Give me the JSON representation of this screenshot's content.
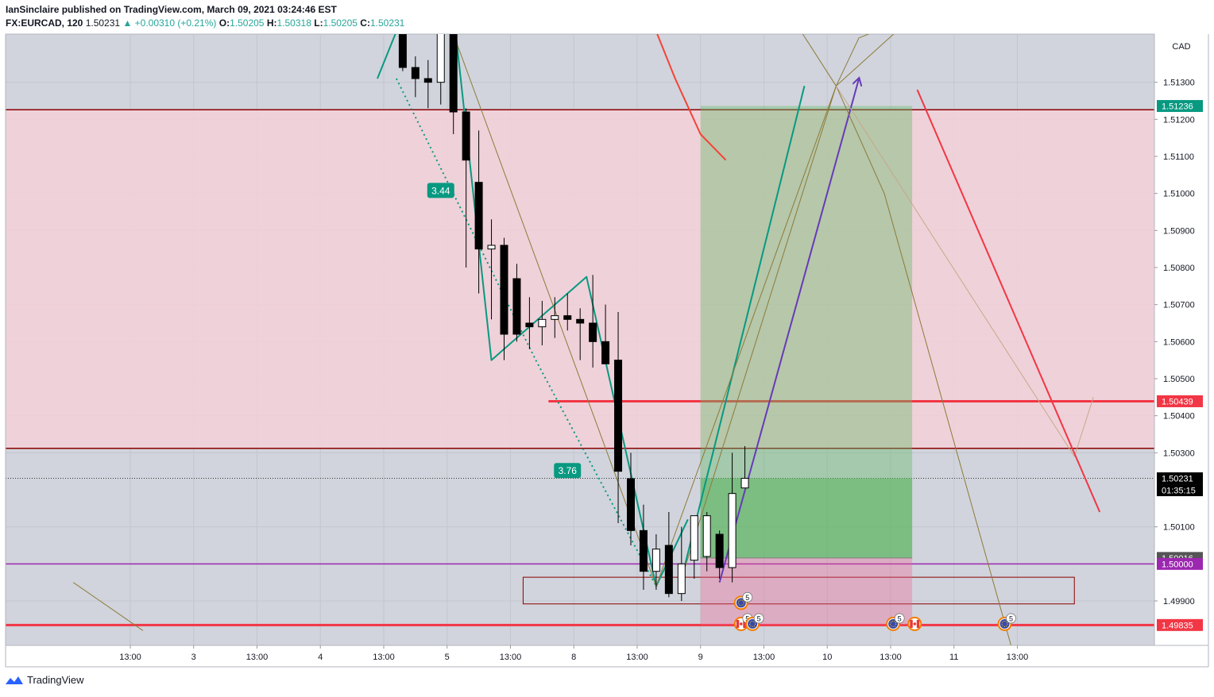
{
  "header": {
    "publisher_line": "IanSinclaire published on TradingView.com, March 09, 2021 03:24:46 EST",
    "symbol": "FX:EURCAD, 120",
    "last": "1.50231",
    "change": "▲ +0.00310 (+0.21%)",
    "o_label": "O:",
    "o_value": "1.50205",
    "h_label": "H:",
    "h_value": "1.50318",
    "l_label": "L:",
    "l_value": "1.50205",
    "c_label": "C:",
    "c_value": "1.50231"
  },
  "footer": {
    "brand": "TradingView"
  },
  "chart_data": {
    "type": "candlestick",
    "symbol": "FX:EURCAD",
    "interval": "120",
    "currency_label": "CAD",
    "ylim": [
      1.4978,
      1.5143
    ],
    "y_ticks": [
      "1.51300",
      "1.51200",
      "1.51100",
      "1.51000",
      "1.50900",
      "1.50800",
      "1.50700",
      "1.50600",
      "1.50500",
      "1.50400",
      "1.50300",
      "1.50100",
      "1.49900"
    ],
    "x_ticks": [
      {
        "i": -16.5,
        "label": "13:00"
      },
      {
        "i": -11.5,
        "label": "3"
      },
      {
        "i": -6.5,
        "label": "13:00"
      },
      {
        "i": -1.5,
        "label": "4"
      },
      {
        "i": 3.5,
        "label": "13:00"
      },
      {
        "i": 8.5,
        "label": "5"
      },
      {
        "i": 13.5,
        "label": "13:00"
      },
      {
        "i": 18.5,
        "label": "8"
      },
      {
        "i": 23.5,
        "label": "13:00"
      },
      {
        "i": 28.5,
        "label": "9"
      },
      {
        "i": 33.5,
        "label": "13:00"
      },
      {
        "i": 38.5,
        "label": "10"
      },
      {
        "i": 43.5,
        "label": "13:00"
      },
      {
        "i": 48.5,
        "label": "11"
      },
      {
        "i": 53.5,
        "label": "13:00"
      }
    ],
    "candles": [
      {
        "i": 5,
        "o": 1.5145,
        "h": 1.5145,
        "l": 1.5133,
        "c": 1.5134
      },
      {
        "i": 6,
        "o": 1.5134,
        "h": 1.5137,
        "l": 1.5126,
        "c": 1.5131
      },
      {
        "i": 7,
        "o": 1.5131,
        "h": 1.5136,
        "l": 1.5123,
        "c": 1.513
      },
      {
        "i": 8,
        "o": 1.513,
        "h": 1.5145,
        "l": 1.5124,
        "c": 1.5145
      },
      {
        "i": 9,
        "o": 1.5145,
        "h": 1.5145,
        "l": 1.5116,
        "c": 1.5122
      },
      {
        "i": 10,
        "o": 1.5122,
        "h": 1.5123,
        "l": 1.508,
        "c": 1.5109
      },
      {
        "i": 11,
        "o": 1.5103,
        "h": 1.5117,
        "l": 1.5073,
        "c": 1.5085
      },
      {
        "i": 12,
        "o": 1.5085,
        "h": 1.5093,
        "l": 1.5066,
        "c": 1.5086
      },
      {
        "i": 13,
        "o": 1.5086,
        "h": 1.5088,
        "l": 1.5055,
        "c": 1.5062
      },
      {
        "i": 14,
        "o": 1.5077,
        "h": 1.5081,
        "l": 1.506,
        "c": 1.5062
      },
      {
        "i": 15,
        "o": 1.5065,
        "h": 1.5072,
        "l": 1.5058,
        "c": 1.5064
      },
      {
        "i": 16,
        "o": 1.5064,
        "h": 1.5071,
        "l": 1.5059,
        "c": 1.5066
      },
      {
        "i": 17,
        "o": 1.5066,
        "h": 1.5072,
        "l": 1.5061,
        "c": 1.5067
      },
      {
        "i": 18,
        "o": 1.5067,
        "h": 1.5073,
        "l": 1.5063,
        "c": 1.5066
      },
      {
        "i": 19,
        "o": 1.5066,
        "h": 1.5069,
        "l": 1.5055,
        "c": 1.5065
      },
      {
        "i": 20,
        "o": 1.5065,
        "h": 1.5078,
        "l": 1.5053,
        "c": 1.506
      },
      {
        "i": 21,
        "o": 1.506,
        "h": 1.507,
        "l": 1.5054,
        "c": 1.5054
      },
      {
        "i": 22,
        "o": 1.5055,
        "h": 1.5068,
        "l": 1.5011,
        "c": 1.5025
      },
      {
        "i": 23,
        "o": 1.5023,
        "h": 1.503,
        "l": 1.5005,
        "c": 1.5009
      },
      {
        "i": 24,
        "o": 1.5009,
        "h": 1.5016,
        "l": 1.4993,
        "c": 1.4998
      },
      {
        "i": 25,
        "o": 1.4998,
        "h": 1.5008,
        "l": 1.4993,
        "c": 1.5004
      },
      {
        "i": 26,
        "o": 1.5005,
        "h": 1.5014,
        "l": 1.4991,
        "c": 1.4992
      },
      {
        "i": 27,
        "o": 1.4992,
        "h": 1.501,
        "l": 1.499,
        "c": 1.5
      },
      {
        "i": 28,
        "o": 1.5001,
        "h": 1.5012,
        "l": 1.4996,
        "c": 1.5013
      },
      {
        "i": 29,
        "o": 1.5002,
        "h": 1.5014,
        "l": 1.4998,
        "c": 1.5013
      },
      {
        "i": 30,
        "o": 1.5008,
        "h": 1.5009,
        "l": 1.4996,
        "c": 1.4999
      },
      {
        "i": 31,
        "o": 1.4999,
        "h": 1.503,
        "l": 1.4995,
        "c": 1.5019
      },
      {
        "i": 32,
        "o": 1.50205,
        "h": 1.50318,
        "l": 1.50205,
        "c": 1.50231
      }
    ],
    "price_labels": [
      {
        "text": "1.51236",
        "price": 1.51236,
        "color": "#089981"
      },
      {
        "text": "1.50439",
        "price": 1.50439,
        "color": "#f23645"
      },
      {
        "text": "1.50231",
        "price": 1.50231,
        "color": "#000000"
      },
      {
        "text": "01:35:15",
        "price": 1.50231,
        "color": "#000000",
        "sub": true
      },
      {
        "text": "1.50016",
        "price": 1.50016,
        "color": "#555555"
      },
      {
        "text": "1.50000",
        "price": 1.5,
        "color": "#9c27b0"
      },
      {
        "text": "1.49835",
        "price": 1.49835,
        "color": "#f23645"
      }
    ],
    "zones": [
      {
        "kind": "supply",
        "top": 1.51226,
        "bottom": 1.50312,
        "color": "#f8bbd0"
      },
      {
        "kind": "demand-box",
        "i1": 14.5,
        "i2": 58,
        "top": 1.49964,
        "bottom": 1.49892
      }
    ],
    "levels": [
      {
        "price": 1.51226,
        "color": "#8b0000",
        "width": 1.5,
        "name": "supply-top"
      },
      {
        "price": 1.50312,
        "color": "#8b0000",
        "width": 1.5,
        "name": "supply-bottom"
      },
      {
        "price": 1.50439,
        "color": "#f23645",
        "width": 3,
        "i1": 16.5,
        "name": "resistance"
      },
      {
        "price": 1.5,
        "color": "#9c27b0",
        "width": 1.5,
        "name": "psych-level"
      },
      {
        "price": 1.49835,
        "color": "#f23645",
        "width": 3,
        "name": "support"
      }
    ],
    "position": {
      "i1": 28.5,
      "i2": 45.2,
      "entry": 1.50016,
      "target": 1.51236,
      "stop": 1.49835,
      "last": 1.50231
    },
    "annotations": [
      {
        "text": "3.44",
        "i": 8,
        "price": 1.51007
      },
      {
        "text": "3.76",
        "i": 18,
        "price": 1.50251
      }
    ],
    "events": [
      {
        "i": 31.7,
        "price": 1.49895,
        "count": "5",
        "kind": "EUR"
      },
      {
        "i": 31.7,
        "price": 1.49838,
        "count": "5",
        "kind": "CAD"
      },
      {
        "i": 32.6,
        "price": 1.49838,
        "count": "5",
        "kind": "EUR"
      },
      {
        "i": 43.7,
        "price": 1.49838,
        "count": "5",
        "kind": "EUR"
      },
      {
        "i": 45.4,
        "price": 1.49838,
        "count": "",
        "kind": "CAD"
      },
      {
        "i": 52.5,
        "price": 1.49838,
        "count": "5",
        "kind": "EUR"
      }
    ],
    "drawings": [
      {
        "name": "dotted-leg-1",
        "color": "#089981",
        "dash": "2,4",
        "width": 2,
        "pts": [
          [
            4.5,
            1.5131
          ],
          [
            15.5,
            1.5055
          ]
        ]
      },
      {
        "name": "dotted-leg-2",
        "color": "#089981",
        "dash": "2,4",
        "width": 2,
        "pts": [
          [
            15.5,
            1.5055
          ],
          [
            25,
            1.4994
          ]
        ]
      },
      {
        "name": "abcd-teal",
        "color": "#089981",
        "width": 2,
        "pts": [
          [
            3,
            1.5131
          ],
          [
            5,
            1.5148
          ],
          [
            9,
            1.5149
          ],
          [
            12,
            1.5055
          ],
          [
            19.5,
            1.50775
          ],
          [
            25,
            1.4994
          ],
          [
            27.5,
            1.5012
          ]
        ]
      },
      {
        "name": "teal-projection",
        "color": "#089981",
        "width": 2,
        "pts": [
          [
            27,
            1.4996
          ],
          [
            36.7,
            1.5129
          ]
        ]
      },
      {
        "name": "purple-arrow",
        "color": "#673ab7",
        "width": 2,
        "pts": [
          [
            30,
            1.4995
          ],
          [
            41,
            1.5131
          ]
        ],
        "arrow": true
      },
      {
        "name": "olive-1",
        "color": "#8d7a3a",
        "width": 1,
        "pts": [
          [
            9,
            1.5143
          ],
          [
            25,
            1.4994
          ],
          [
            39.2,
            1.5129
          ],
          [
            43,
            1.51
          ],
          [
            53,
            1.4978
          ]
        ]
      },
      {
        "name": "olive-2",
        "color": "#8d7a3a",
        "width": 1,
        "pts": [
          [
            27,
            1.4996
          ],
          [
            39.2,
            1.5129
          ],
          [
            46,
            1.515
          ]
        ]
      },
      {
        "name": "olive-3",
        "color": "#8d7a3a",
        "width": 1,
        "pts": [
          [
            36.2,
            1.5145
          ],
          [
            39.2,
            1.5129
          ],
          [
            41,
            1.5142
          ],
          [
            47,
            1.515
          ]
        ]
      },
      {
        "name": "tan-thin",
        "color": "#c8a88a",
        "width": 1,
        "pts": [
          [
            39.2,
            1.5129
          ],
          [
            58,
            1.5029
          ],
          [
            59.5,
            1.5045
          ]
        ]
      },
      {
        "name": "olive-left",
        "color": "#8d7a3a",
        "width": 1,
        "pts": [
          [
            -21,
            1.4995
          ],
          [
            -15.5,
            1.4982
          ]
        ]
      },
      {
        "name": "red-curve",
        "color": "#f44336",
        "width": 2,
        "pts": [
          [
            24.5,
            1.5148
          ],
          [
            26.5,
            1.5131
          ],
          [
            28.5,
            1.5116
          ],
          [
            30.5,
            1.5109
          ]
        ]
      },
      {
        "name": "red-diagonal",
        "color": "#f23645",
        "width": 2,
        "pts": [
          [
            45.6,
            1.5128
          ],
          [
            60,
            1.5014
          ]
        ]
      }
    ]
  }
}
